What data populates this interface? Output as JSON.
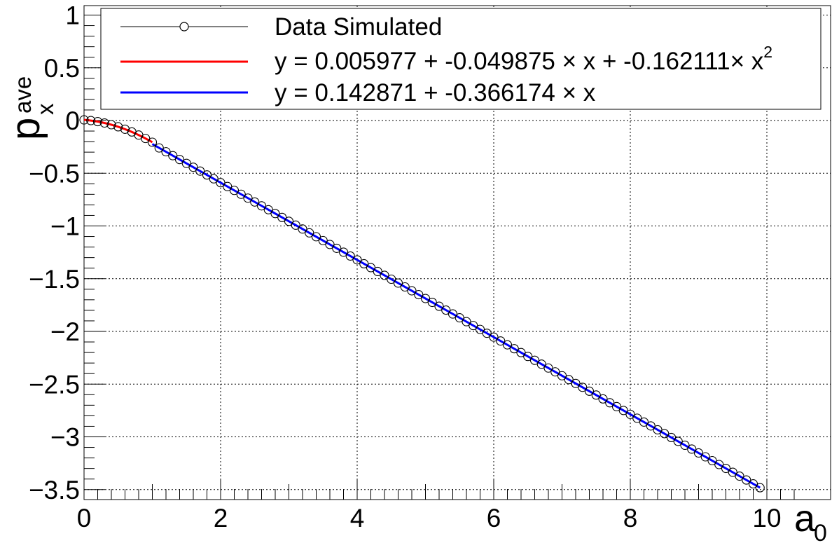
{
  "chart_data": {
    "type": "scatter",
    "title": "",
    "xlabel": "a",
    "xlabel_sub": "0",
    "ylabel": "p",
    "ylabel_sup": "ave",
    "ylabel_sub": "x",
    "xlim": [
      0,
      10.5
    ],
    "ylim": [
      -3.6,
      1.1
    ],
    "grid": true,
    "legend_position": "top",
    "x_ticks": [
      0,
      2,
      4,
      6,
      8,
      10
    ],
    "x_tick_labels": [
      "0",
      "2",
      "4",
      "6",
      "8",
      "10"
    ],
    "y_ticks": [
      1,
      0.5,
      0,
      -0.5,
      -1,
      -1.5,
      -2,
      -2.5,
      -3,
      -3.5
    ],
    "y_tick_labels": [
      "1",
      "0.5",
      "0",
      "−0.5",
      "−1",
      "−1.5",
      "−2",
      "−2.5",
      "−3",
      "−3.5"
    ],
    "series": [
      {
        "name": "Data Simulated",
        "kind": "markers",
        "color": "#000000",
        "x_start": 0,
        "x_step": 0.1,
        "count": 100,
        "note_values": "y = 0.005977 - 0.049875 x - 0.162111 x^2 for x <= 1; y = 0.142871 - 0.366174 x for x > 1"
      },
      {
        "name": "y = 0.005977 + -0.049875 × x + -0.162111× x",
        "name_sup": "2",
        "kind": "fit",
        "model": "quadratic",
        "coefficients": [
          0.005977,
          -0.049875,
          -0.162111
        ],
        "x_range": [
          0,
          1.0
        ],
        "color": "#ff0000"
      },
      {
        "name": "y = 0.142871 + -0.366174 × x",
        "kind": "fit",
        "model": "linear",
        "coefficients": [
          0.142871,
          -0.366174
        ],
        "x_range": [
          1.0,
          9.9
        ],
        "color": "#0000ff"
      }
    ]
  }
}
